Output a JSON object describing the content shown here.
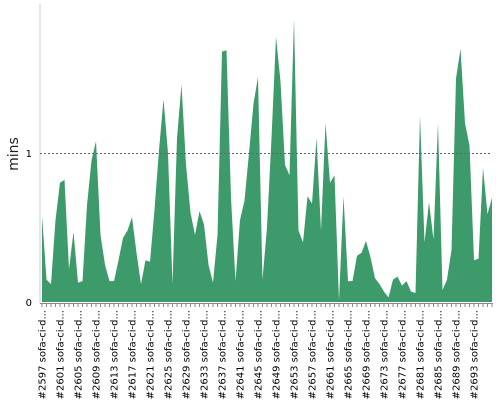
{
  "chart_data": {
    "type": "area",
    "title": "",
    "xlabel": "",
    "ylabel": "mins",
    "ylim": [
      0,
      2.0
    ],
    "yticks": [
      0,
      1
    ],
    "reference_line": 1,
    "grid": false,
    "color": "#3d9a6a",
    "x_tick_labels": [
      "#2597 sofa-ci-d...",
      "#2601 sofa-ci-d...",
      "#2605 sofa-ci-d...",
      "#2609 sofa-ci-d...",
      "#2613 sofa-ci-d...",
      "#2617 sofa-ci-d...",
      "#2621 sofa-ci-d...",
      "#2625 sofa-ci-d...",
      "#2629 sofa-ci-d...",
      "#2633 sofa-ci-d...",
      "#2637 sofa-ci-d...",
      "#2641 sofa-ci-d...",
      "#2645 sofa-ci-d...",
      "#2649 sofa-ci-d...",
      "#2653 sofa-ci-d...",
      "#2657 sofa-ci-d...",
      "#2661 sofa-ci-d...",
      "#2665 sofa-ci-d...",
      "#2669 sofa-ci-d...",
      "#2673 sofa-ci-d...",
      "#2677 sofa-ci-d...",
      "#2681 sofa-ci-d...",
      "#2685 sofa-ci-d...",
      "#2689 sofa-ci-d...",
      "#2693 sofa-ci-d..."
    ],
    "values": [
      0.58,
      0.15,
      0.12,
      0.55,
      0.8,
      0.82,
      0.22,
      0.47,
      0.13,
      0.14,
      0.65,
      0.95,
      1.08,
      0.45,
      0.25,
      0.14,
      0.14,
      0.28,
      0.43,
      0.48,
      0.57,
      0.33,
      0.12,
      0.28,
      0.27,
      0.62,
      1.02,
      1.36,
      1.0,
      0.12,
      1.1,
      1.46,
      0.92,
      0.6,
      0.45,
      0.61,
      0.52,
      0.25,
      0.13,
      0.45,
      1.68,
      1.69,
      0.7,
      0.14,
      0.55,
      0.68,
      1.0,
      1.33,
      1.51,
      0.15,
      0.5,
      1.1,
      1.78,
      1.48,
      0.92,
      0.85,
      1.9,
      0.48,
      0.4,
      0.71,
      0.66,
      1.1,
      0.48,
      1.2,
      0.8,
      0.85,
      0.01,
      0.71,
      0.14,
      0.14,
      0.31,
      0.33,
      0.41,
      0.3,
      0.16,
      0.12,
      0.07,
      0.03,
      0.15,
      0.17,
      0.11,
      0.14,
      0.07,
      0.06,
      1.25,
      0.4,
      0.67,
      0.42,
      1.2,
      0.08,
      0.15,
      0.35,
      1.5,
      1.7,
      1.2,
      1.05,
      0.28,
      0.29,
      0.9,
      0.59,
      0.7
    ]
  }
}
